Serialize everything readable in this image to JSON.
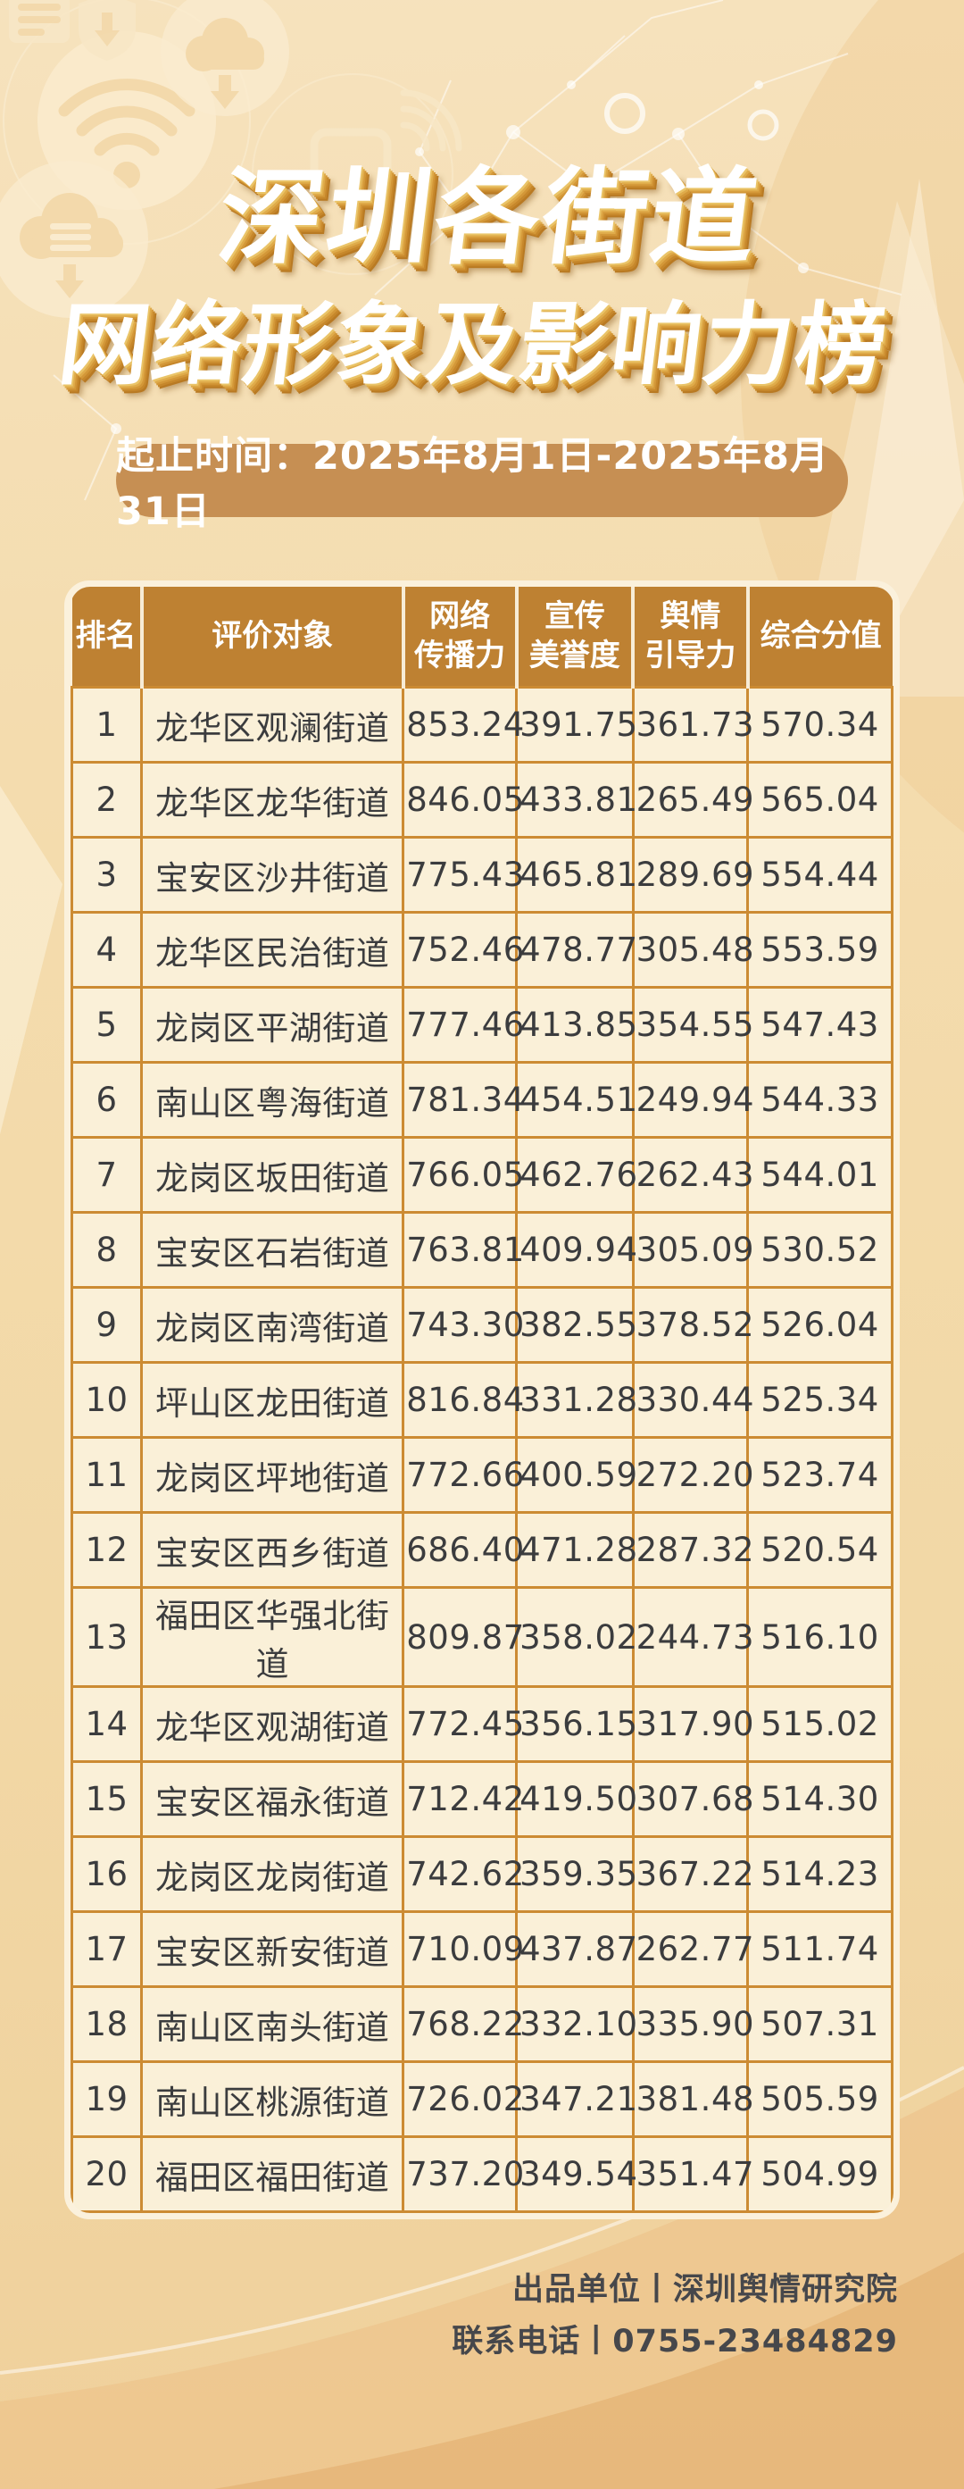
{
  "title": {
    "line1": "深圳各街道",
    "line2": "网络形象及影响力榜"
  },
  "period": {
    "label": "起止时间：2025年8月1日-2025年8月31日"
  },
  "table": {
    "columns": [
      {
        "key": "rank",
        "label": "排名"
      },
      {
        "key": "name",
        "label": "评价对象"
      },
      {
        "key": "spread",
        "label": "网络\n传播力"
      },
      {
        "key": "reputation",
        "label": "宣传\n美誉度"
      },
      {
        "key": "guidance",
        "label": "舆情\n引导力"
      },
      {
        "key": "score",
        "label": "综合分值"
      }
    ],
    "rows": [
      {
        "rank": "1",
        "name": "龙华区观澜街道",
        "spread": "853.24",
        "reputation": "391.75",
        "guidance": "361.73",
        "score": "570.34"
      },
      {
        "rank": "2",
        "name": "龙华区龙华街道",
        "spread": "846.05",
        "reputation": "433.81",
        "guidance": "265.49",
        "score": "565.04"
      },
      {
        "rank": "3",
        "name": "宝安区沙井街道",
        "spread": "775.43",
        "reputation": "465.81",
        "guidance": "289.69",
        "score": "554.44"
      },
      {
        "rank": "4",
        "name": "龙华区民治街道",
        "spread": "752.46",
        "reputation": "478.77",
        "guidance": "305.48",
        "score": "553.59"
      },
      {
        "rank": "5",
        "name": "龙岗区平湖街道",
        "spread": "777.46",
        "reputation": "413.85",
        "guidance": "354.55",
        "score": "547.43"
      },
      {
        "rank": "6",
        "name": "南山区粤海街道",
        "spread": "781.34",
        "reputation": "454.51",
        "guidance": "249.94",
        "score": "544.33"
      },
      {
        "rank": "7",
        "name": "龙岗区坂田街道",
        "spread": "766.05",
        "reputation": "462.76",
        "guidance": "262.43",
        "score": "544.01"
      },
      {
        "rank": "8",
        "name": "宝安区石岩街道",
        "spread": "763.81",
        "reputation": "409.94",
        "guidance": "305.09",
        "score": "530.52"
      },
      {
        "rank": "9",
        "name": "龙岗区南湾街道",
        "spread": "743.30",
        "reputation": "382.55",
        "guidance": "378.52",
        "score": "526.04"
      },
      {
        "rank": "10",
        "name": "坪山区龙田街道",
        "spread": "816.84",
        "reputation": "331.28",
        "guidance": "330.44",
        "score": "525.34"
      },
      {
        "rank": "11",
        "name": "龙岗区坪地街道",
        "spread": "772.66",
        "reputation": "400.59",
        "guidance": "272.20",
        "score": "523.74"
      },
      {
        "rank": "12",
        "name": "宝安区西乡街道",
        "spread": "686.40",
        "reputation": "471.28",
        "guidance": "287.32",
        "score": "520.54"
      },
      {
        "rank": "13",
        "name": "福田区华强北街道",
        "spread": "809.87",
        "reputation": "358.02",
        "guidance": "244.73",
        "score": "516.10"
      },
      {
        "rank": "14",
        "name": "龙华区观湖街道",
        "spread": "772.45",
        "reputation": "356.15",
        "guidance": "317.90",
        "score": "515.02"
      },
      {
        "rank": "15",
        "name": "宝安区福永街道",
        "spread": "712.42",
        "reputation": "419.50",
        "guidance": "307.68",
        "score": "514.30"
      },
      {
        "rank": "16",
        "name": "龙岗区龙岗街道",
        "spread": "742.62",
        "reputation": "359.35",
        "guidance": "367.22",
        "score": "514.23"
      },
      {
        "rank": "17",
        "name": "宝安区新安街道",
        "spread": "710.09",
        "reputation": "437.87",
        "guidance": "262.77",
        "score": "511.74"
      },
      {
        "rank": "18",
        "name": "南山区南头街道",
        "spread": "768.22",
        "reputation": "332.10",
        "guidance": "335.90",
        "score": "507.31"
      },
      {
        "rank": "19",
        "name": "南山区桃源街道",
        "spread": "726.02",
        "reputation": "347.21",
        "guidance": "381.48",
        "score": "505.59"
      },
      {
        "rank": "20",
        "name": "福田区福田街道",
        "spread": "737.20",
        "reputation": "349.54",
        "guidance": "351.47",
        "score": "504.99"
      }
    ]
  },
  "footer": {
    "line1": "出品单位丨深圳舆情研究院",
    "line2": "联系电话丨0755-23484829"
  },
  "colors": {
    "page_bg": "#f4dcae",
    "decoration_light": "#faebce",
    "decoration_tan": "#f3d9ab",
    "title_text": "#ffffff",
    "title_extrude": "#c6872b",
    "date_pill_bg": "#c68f53",
    "header_bg": "#be8132",
    "header_text": "#ffffff",
    "cell_bg": "#faf0d8",
    "grid_border": "#cc8b33",
    "cell_text": "#3b3c3e",
    "table_rim": "#fbf1dc",
    "footer_text": "#46474b",
    "swoosh_band1": "#ecc189",
    "swoosh_band2": "#e4b171"
  }
}
